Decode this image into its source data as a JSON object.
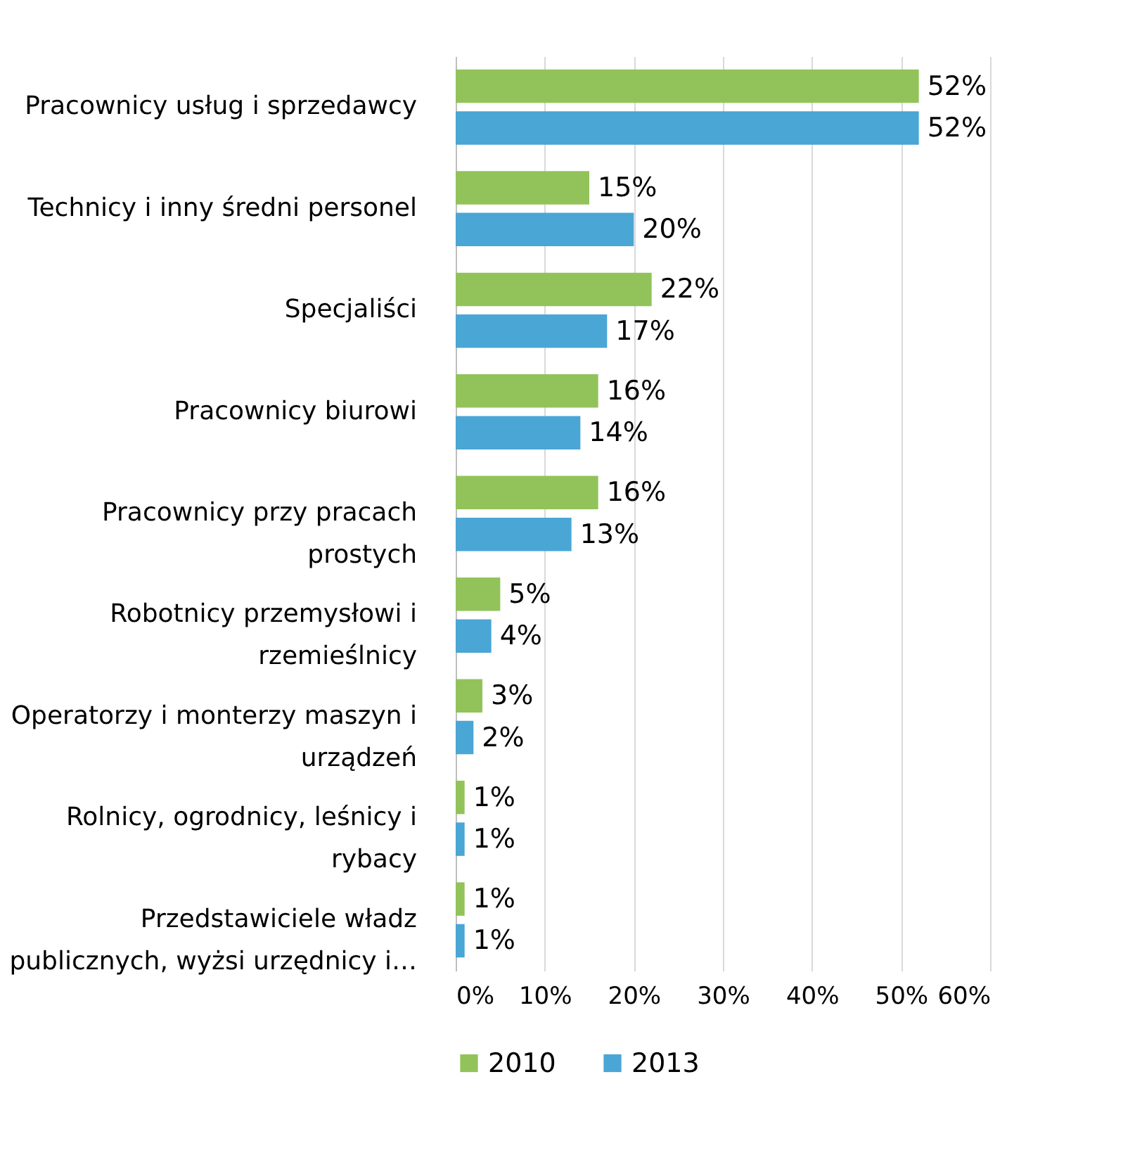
{
  "chart_data": {
    "type": "bar",
    "orientation": "horizontal",
    "categories": [
      "Pracownicy usług i sprzedawcy",
      "Technicy i inny średni personel",
      "Specjaliści",
      "Pracownicy biurowi",
      "Pracownicy przy pracach prostych",
      "Robotnicy przemysłowi i rzemieślnicy",
      "Operatorzy i monterzy maszyn i urządzeń",
      "Rolnicy, ogrodnicy, leśnicy i rybacy",
      "Przedstawiciele władz publicznych, wyżsi urzędnicy i…"
    ],
    "series": [
      {
        "name": "2010",
        "color": "#92c35a",
        "values": [
          52,
          15,
          22,
          16,
          16,
          5,
          3,
          1,
          1
        ],
        "value_labels": [
          "52%",
          "15%",
          "22%",
          "16%",
          "16%",
          "5%",
          "3%",
          "1%",
          "1%"
        ]
      },
      {
        "name": "2013",
        "color": "#4aa6d5",
        "values": [
          52,
          20,
          17,
          14,
          13,
          4,
          2,
          1,
          1
        ],
        "value_labels": [
          "52%",
          "20%",
          "17%",
          "14%",
          "13%",
          "4%",
          "2%",
          "1%",
          "1%"
        ]
      }
    ],
    "xlim": [
      0,
      60
    ],
    "xticks": [
      {
        "value": 0,
        "label": "0%"
      },
      {
        "value": 10,
        "label": "10%"
      },
      {
        "value": 20,
        "label": "20%"
      },
      {
        "value": 30,
        "label": "30%"
      },
      {
        "value": 40,
        "label": "40%"
      },
      {
        "value": 50,
        "label": "50%"
      },
      {
        "value": 60,
        "label": "60%"
      }
    ],
    "grid": "x",
    "legend": "bottom"
  }
}
